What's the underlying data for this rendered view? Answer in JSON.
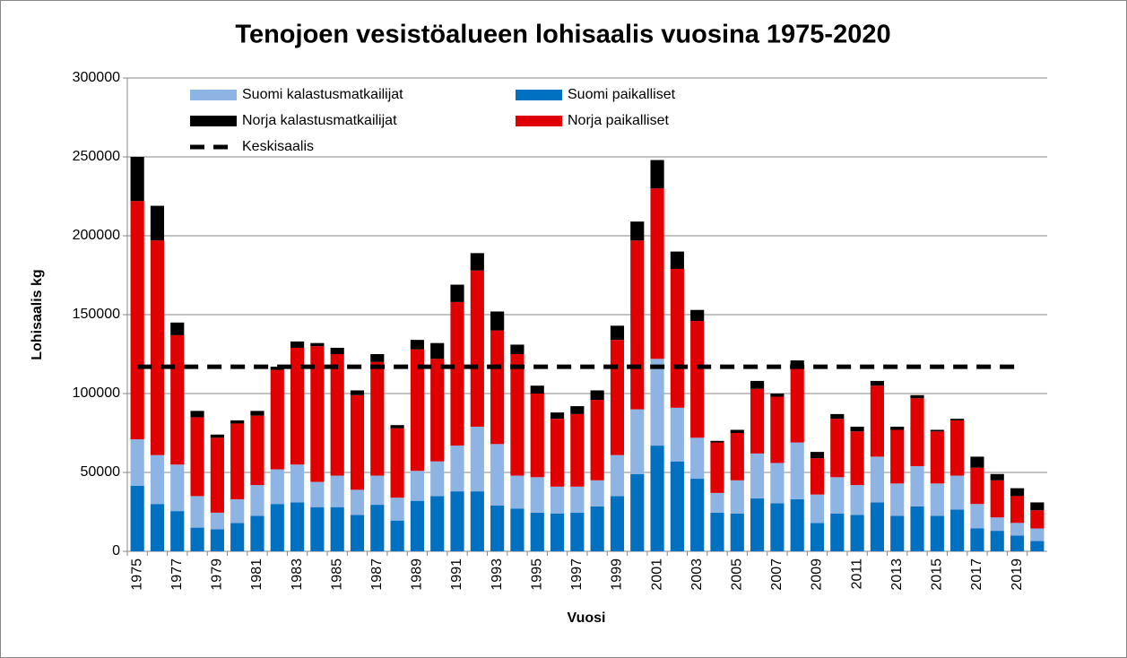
{
  "chart_data": {
    "type": "bar",
    "stacked": true,
    "title": "Tenojoen vesistöalueen lohisaalis vuosina 1975-2020",
    "x_label": "Vuosi",
    "y_label": "Lohisaalis kg",
    "categories": [
      "1975",
      null,
      "1977",
      null,
      "1979",
      null,
      "1981",
      null,
      "1983",
      null,
      "1985",
      null,
      "1987",
      null,
      "1989",
      null,
      "1991",
      null,
      "1993",
      null,
      "1995",
      null,
      "1997",
      null,
      "1999",
      null,
      "2001",
      null,
      "2003",
      null,
      "2005",
      null,
      "2007",
      null,
      "2009",
      null,
      "2011",
      null,
      "2013",
      null,
      "2015",
      null,
      "2017",
      null,
      "2019",
      null
    ],
    "ylim": [
      0,
      300000
    ],
    "yticks": [
      0,
      50000,
      100000,
      150000,
      200000,
      250000,
      300000
    ],
    "grid": true,
    "series": [
      {
        "name": "Suomi paikalliset",
        "color": "#0070c0",
        "values": [
          41500,
          30000,
          25500,
          15000,
          14000,
          18000,
          22500,
          30000,
          31000,
          28000,
          28000,
          23000,
          29500,
          19500,
          32000,
          35000,
          38000,
          38000,
          29000,
          27000,
          24500,
          24000,
          24500,
          28500,
          35000,
          49000,
          67000,
          57000,
          46000,
          24500,
          24000,
          33500,
          30500,
          33000,
          18000,
          24000,
          23000,
          31000,
          22500,
          28500,
          22500,
          26500,
          14500,
          13000,
          10000,
          6500
        ]
      },
      {
        "name": "Suomi kalastusmatkailijat",
        "color": "#8db4e2",
        "values": [
          29500,
          31000,
          29500,
          20000,
          10500,
          15000,
          19500,
          22000,
          24000,
          16000,
          20000,
          16000,
          18500,
          14500,
          19000,
          22000,
          29000,
          41000,
          39000,
          21000,
          22500,
          17000,
          16500,
          16500,
          26000,
          41000,
          55000,
          34000,
          26000,
          12500,
          21000,
          28500,
          25500,
          36000,
          18000,
          23000,
          19000,
          29000,
          20500,
          25500,
          20500,
          21500,
          15500,
          8500,
          8000,
          8000
        ]
      },
      {
        "name": "Norja paikalliset",
        "color": "#e00000",
        "values": [
          151000,
          136000,
          82000,
          50000,
          47500,
          48000,
          44000,
          63000,
          74000,
          86000,
          77000,
          60000,
          72000,
          44000,
          77000,
          65000,
          91000,
          99000,
          72000,
          77000,
          53000,
          43000,
          46000,
          51000,
          73000,
          107000,
          108000,
          88000,
          74000,
          32000,
          30000,
          41000,
          42000,
          47000,
          23000,
          37000,
          34000,
          45000,
          34000,
          43000,
          33000,
          35000,
          23000,
          23500,
          17000,
          11500
        ]
      },
      {
        "name": "Norja kalastusmatkailijat",
        "color": "#000000",
        "values": [
          28000,
          22000,
          8000,
          4000,
          2000,
          2000,
          3000,
          2000,
          4000,
          2000,
          4000,
          3000,
          5000,
          2000,
          6000,
          10000,
          11000,
          11000,
          12000,
          6000,
          5000,
          4000,
          5000,
          6000,
          9000,
          12000,
          18000,
          11000,
          7000,
          1000,
          2000,
          5000,
          2000,
          5000,
          4000,
          3000,
          3000,
          3000,
          2000,
          2000,
          1000,
          1000,
          7000,
          4000,
          5000,
          5000
        ]
      },
      {
        "name": "Keskisaalis",
        "type": "line",
        "color": "#000000",
        "values": [
          117000,
          117000,
          117000,
          117000,
          117000,
          117000,
          117000,
          117000,
          117000,
          117000,
          117000,
          117000,
          117000,
          117000,
          117000,
          117000,
          117000,
          117000,
          117000,
          117000,
          117000,
          117000,
          117000,
          117000,
          117000,
          117000,
          117000,
          117000,
          117000,
          117000,
          117000,
          117000,
          117000,
          117000,
          117000,
          117000,
          117000,
          117000,
          117000,
          117000,
          117000,
          117000,
          117000,
          117000,
          117000,
          null
        ]
      }
    ]
  }
}
